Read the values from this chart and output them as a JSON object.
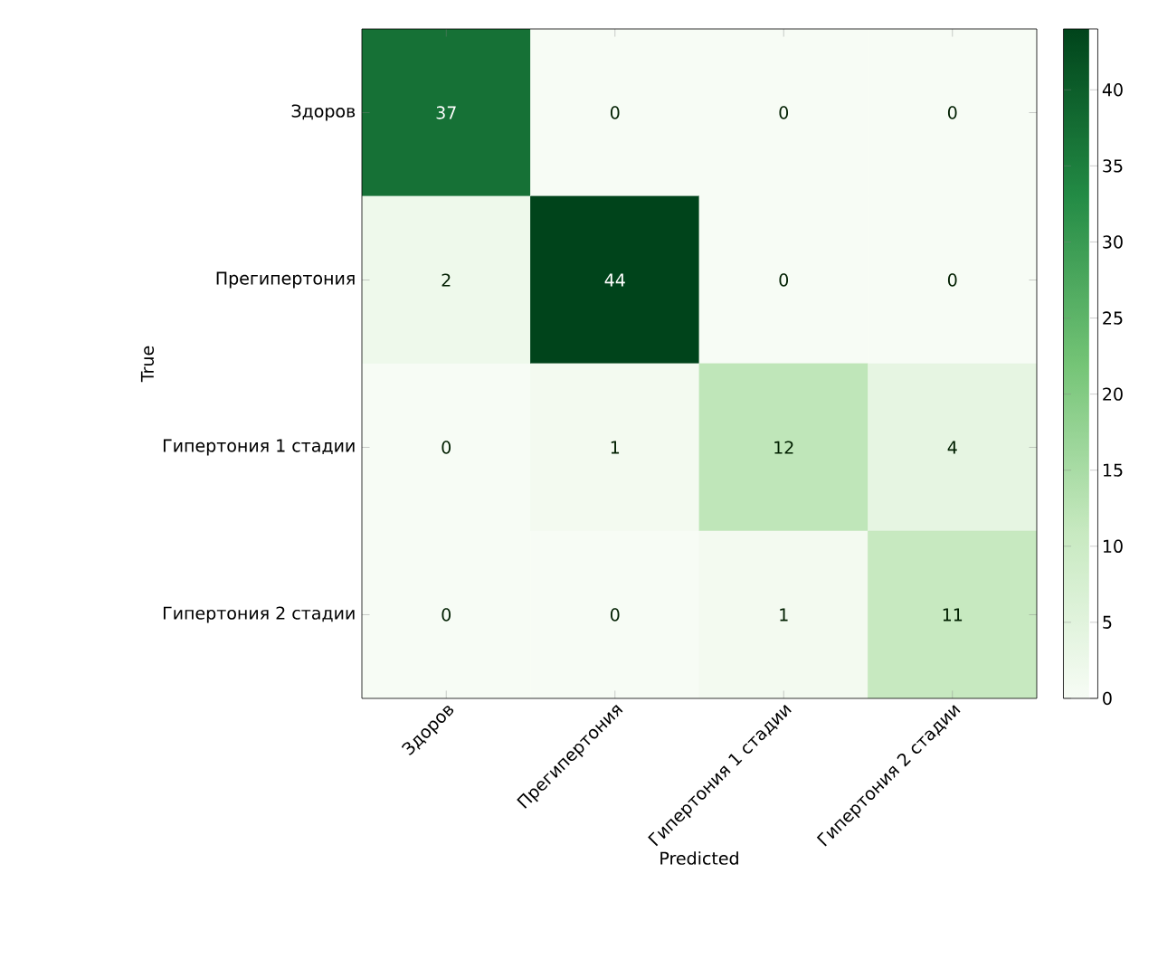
{
  "chart_data": {
    "type": "heatmap",
    "xlabel": "Predicted",
    "ylabel": "True",
    "categories": [
      "Здоров",
      "Прегипертония",
      "Гипертония 1 стадии",
      "Гипертония 2 стадии"
    ],
    "y_categories": [
      "Здоров",
      "Прегипертония",
      "Гипертония 1 стадии",
      "Гипертония 2 стадии"
    ],
    "cells": [
      [
        37,
        0,
        0,
        0
      ],
      [
        2,
        44,
        0,
        0
      ],
      [
        0,
        1,
        12,
        4
      ],
      [
        0,
        0,
        1,
        11
      ]
    ],
    "data_labels": true,
    "clim": [
      0,
      44
    ],
    "cticks": [
      0,
      5,
      10,
      15,
      20,
      25,
      30,
      35,
      40
    ]
  }
}
